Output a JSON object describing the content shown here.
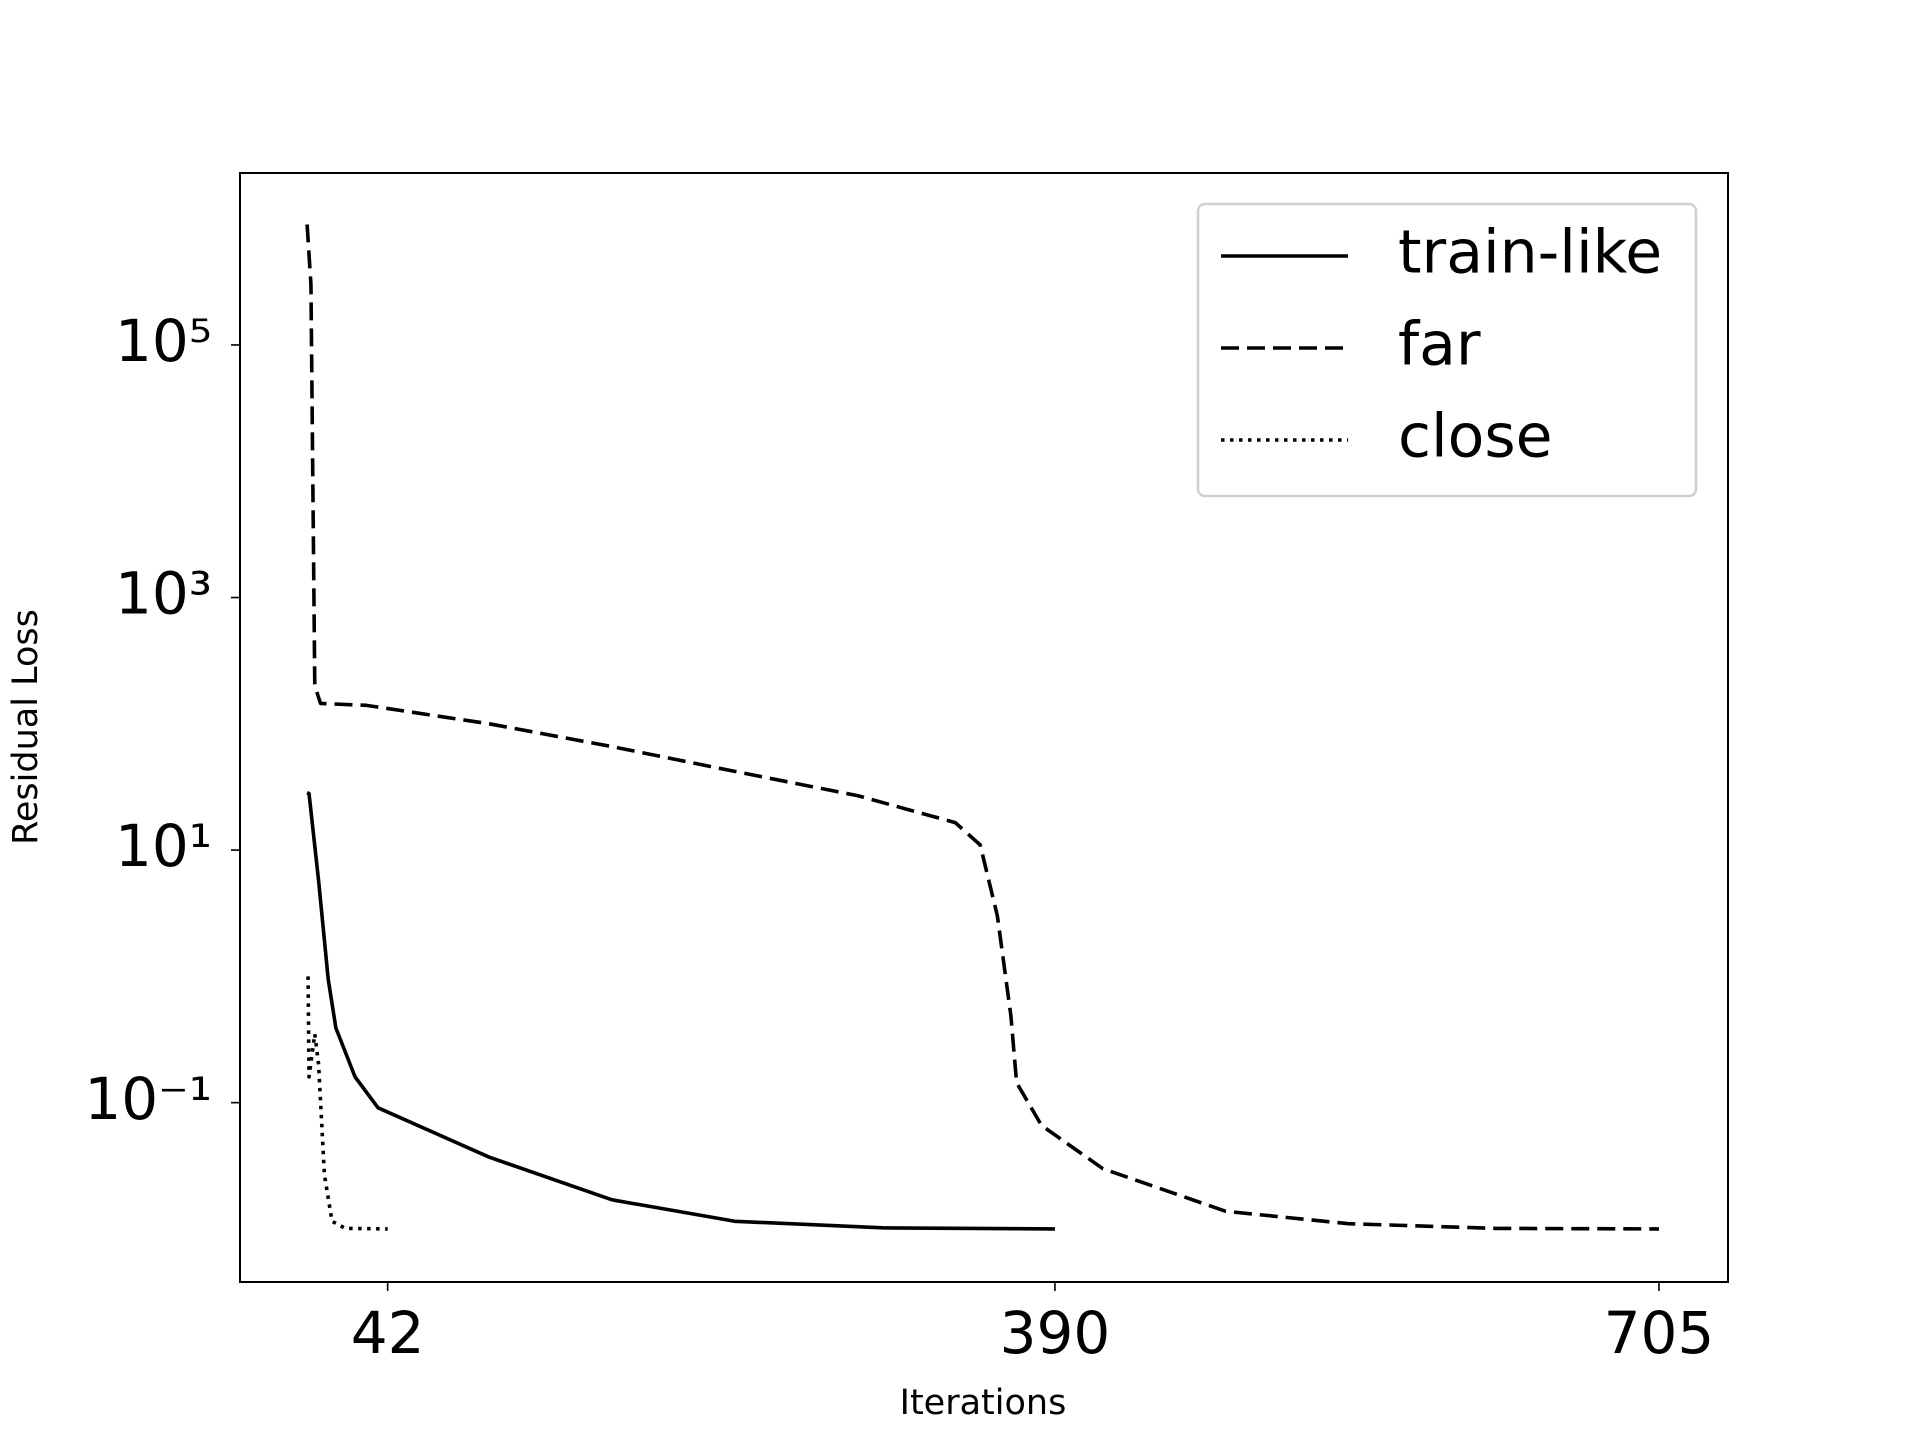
{
  "chart_data": {
    "type": "line",
    "yscale": "log",
    "xlabel": "Iterations",
    "ylabel": "Residual Loss",
    "xlim": [
      -35,
      741
    ],
    "xticks": [
      42,
      390,
      705
    ],
    "ylim": [
      0.0038,
      2300000
    ],
    "yticks": [
      {
        "value": 0.1,
        "label": "10⁻¹"
      },
      {
        "value": 10,
        "label": "10¹"
      },
      {
        "value": 1000,
        "label": "10³"
      },
      {
        "value": 100000,
        "label": "10⁵"
      }
    ],
    "legend": "upper right",
    "series": [
      {
        "name": "train-like",
        "color": "#000000",
        "linestyle": "solid",
        "x": [
          0,
          1,
          6,
          11,
          15,
          25,
          37,
          95,
          159,
          223,
          300,
          390
        ],
        "values": [
          28.5,
          28,
          5.7,
          0.95,
          0.39,
          0.16,
          0.091,
          0.037,
          0.017,
          0.0115,
          0.0102,
          0.01
        ]
      },
      {
        "name": "far",
        "color": "#000000",
        "linestyle": "dashed",
        "x": [
          0,
          2,
          4,
          7,
          31,
          95,
          159,
          223,
          287,
          338,
          351,
          360,
          367,
          370,
          383,
          415,
          479,
          543,
          620,
          705
        ],
        "values": [
          900000,
          300000,
          200,
          145,
          140,
          100,
          66,
          42,
          27,
          16.5,
          11,
          3,
          0.49,
          0.144,
          0.066,
          0.03,
          0.0138,
          0.011,
          0.0101,
          0.01
        ]
      },
      {
        "name": "close",
        "color": "#000000",
        "linestyle": "dotted",
        "x": [
          0.5,
          1,
          4,
          6,
          9,
          13,
          20,
          42
        ],
        "values": [
          1.0,
          0.16,
          0.35,
          0.2,
          0.027,
          0.0115,
          0.0101,
          0.01
        ]
      }
    ]
  }
}
